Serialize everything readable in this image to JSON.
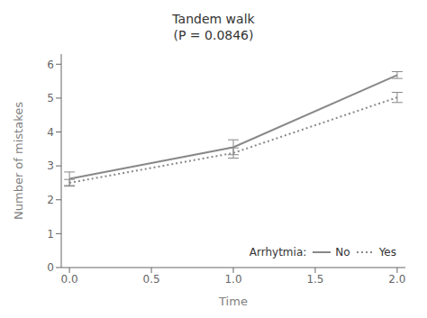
{
  "chart_data": {
    "type": "line",
    "title": "Tandem walk\n(P = 0.0846)",
    "x_label": "Time",
    "y_label": "Number of mistakes",
    "x": [
      0,
      1,
      2
    ],
    "series": [
      {
        "name": "No",
        "color": "#888888",
        "line_style": "solid",
        "values": [
          2.62,
          3.55,
          5.68
        ],
        "error": [
          0.2,
          0.22,
          0.1
        ]
      },
      {
        "name": "Yes",
        "color": "#888888",
        "line_style": "dotted",
        "values": [
          2.5,
          3.38,
          5.02
        ],
        "error": [
          0.1,
          0.15,
          0.15
        ]
      }
    ],
    "xlim": [
      -0.05,
      2.05
    ],
    "ylim": [
      0,
      6.3
    ],
    "xticks": [
      {
        "value": 0,
        "label": "0.0"
      },
      0.5,
      {
        "value": 1,
        "label": "1.0"
      },
      1.5,
      {
        "value": 2,
        "label": "2.0"
      }
    ],
    "yticks": [
      0,
      1,
      2,
      3,
      4,
      5,
      6
    ],
    "legend": "lower right",
    "legend_title": "Arrhytmia:",
    "grid": false
  }
}
